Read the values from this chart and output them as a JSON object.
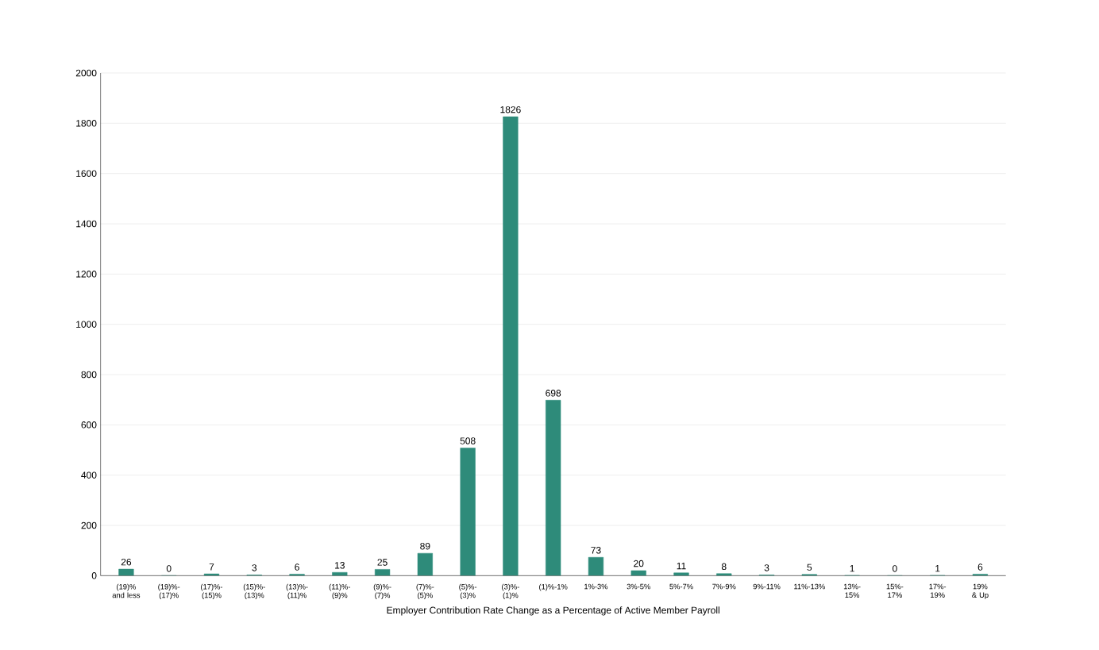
{
  "chart_data": {
    "type": "bar",
    "xlabel": "Employer Contribution Rate Change as a Percentage of Active Member Payroll",
    "categories": [
      "(19)% and less",
      "(19)%-(17)%",
      "(17)%-(15)%",
      "(15)%-(13)%",
      "(13)%-(11)%",
      "(11)%-(9)%",
      "(9)%-(7)%",
      "(7)%-(5)%",
      "(5)%-(3)%",
      "(3)%-(1)%",
      "(1)%-1%",
      "1%-3%",
      "3%-5%",
      "5%-7%",
      "7%-9%",
      "9%-11%",
      "11%-13%",
      "13%-15%",
      "15%-17%",
      "17%-19%",
      "19% & Up"
    ],
    "values": [
      26,
      0,
      7,
      3,
      6,
      13,
      25,
      89,
      508,
      1826,
      698,
      73,
      20,
      11,
      8,
      3,
      5,
      1,
      0,
      1,
      6
    ],
    "color": "#2e8b7a",
    "data_labels": true,
    "grid": "y",
    "ylim": [
      0,
      2000
    ],
    "yticks": [
      0,
      200,
      400,
      600,
      800,
      1000,
      1200,
      1400,
      1600,
      1800,
      2000
    ]
  }
}
